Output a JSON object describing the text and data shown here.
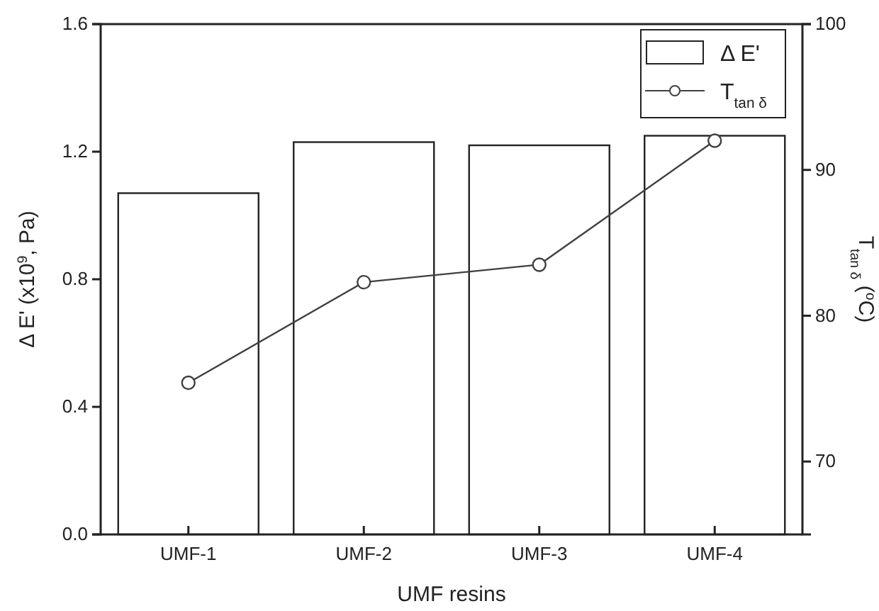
{
  "chart_data": {
    "type": "bar",
    "xlabel": "UMF resins",
    "ylabel": "Δ E' (x10$^{9}$, Pa)",
    "y2label": "T$_{tan δ}$ ($^{o}$C)",
    "categories": [
      "UMF-1",
      "UMF-2",
      "UMF-3",
      "UMF-4"
    ],
    "series": [
      {
        "name": "Δ E'",
        "color": "#ffffff",
        "values": [
          1.07,
          1.23,
          1.22,
          1.25
        ]
      },
      {
        "name": "T$_{tan δ}$",
        "type": "line",
        "axis": "y2",
        "color": "#404040",
        "marker": "circle",
        "values": [
          75.4,
          82.3,
          83.5,
          92.0
        ]
      }
    ],
    "ylim": [
      0,
      1.6
    ],
    "yticks": [
      {
        "value": 0,
        "label": "0.0"
      },
      0.4,
      0.8,
      1.2,
      1.6
    ],
    "y2lim": [
      65,
      100
    ],
    "y2ticks": [
      70,
      80,
      90,
      100
    ],
    "legend": "top right",
    "grid": false
  }
}
